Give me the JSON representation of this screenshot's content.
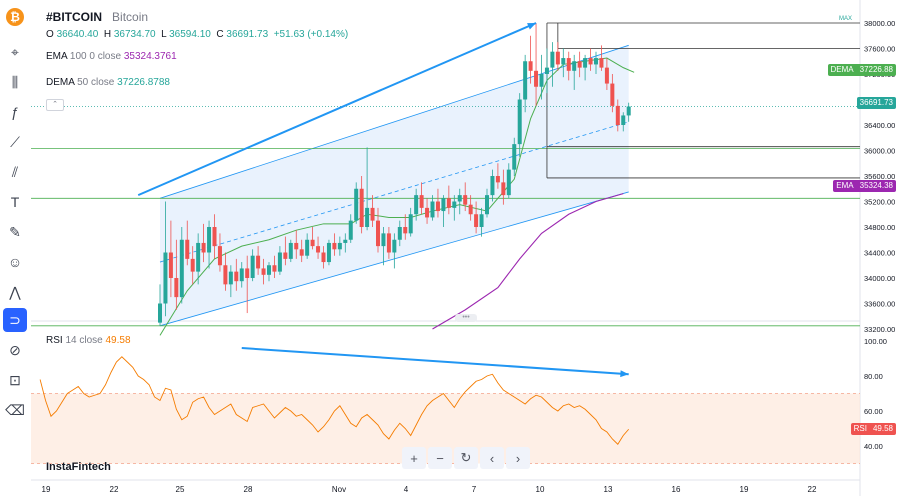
{
  "symbol": "#BITCOIN",
  "symbol_name": "Bitcoin",
  "ohlc": {
    "o_label": "O",
    "o": "36640.40",
    "h_label": "H",
    "h": "36734.70",
    "l_label": "L",
    "l": "36594.10",
    "c_label": "C",
    "c": "36691.73",
    "change": "+51.63 (+0.14%)"
  },
  "ema_legend": {
    "name": "EMA",
    "params": "100 0 close",
    "value": "35324.3761"
  },
  "dema_legend": {
    "name": "DEMA",
    "params": "50 close",
    "value": "37226.8788"
  },
  "rsi_legend": {
    "name": "RSI",
    "params": "14 close",
    "value": "49.58"
  },
  "max_label": "MAX",
  "price_labels": {
    "dema": {
      "name": "DEMA",
      "value": "37226.88"
    },
    "last": {
      "value": "36691.73"
    },
    "ema": {
      "name": "EMA",
      "value": "35324.38"
    },
    "rsi": {
      "name": "RSI",
      "value": "49.58"
    }
  },
  "brand": "InstaFintech",
  "toolbar": {
    "items": [
      "logo",
      "crosshair",
      "candles",
      "fx",
      "line",
      "channel",
      "text",
      "brush",
      "emoji",
      "waves",
      "magnet",
      "eye",
      "lock",
      "trash"
    ]
  },
  "zoom": {
    "plus": "+",
    "minus": "−",
    "reset": "↻",
    "left": "‹",
    "right": "›"
  },
  "colors": {
    "up": "#26a69a",
    "down": "#ef5350",
    "dema": "#4caf50",
    "ema": "#9c27b0",
    "rsi": "#f57c00",
    "trend": "#2196f3",
    "channel": "#2196f3",
    "level": "#4caf50"
  },
  "chart_data": {
    "type": "candlestick",
    "price_axis": {
      "ylim": [
        33150,
        38100
      ],
      "ticks": [
        "38000.00",
        "37600.00",
        "37200.00",
        "36800.00",
        "36400.00",
        "36000.00",
        "35600.00",
        "35200.00",
        "34800.00",
        "34400.00",
        "34000.00",
        "33600.00",
        "33200.00"
      ]
    },
    "x_axis": {
      "ticks": [
        "19",
        "22",
        "25",
        "28",
        "Nov",
        "4",
        "7",
        "10",
        "13",
        "16",
        "19",
        "22"
      ]
    },
    "candles": [
      [
        33300,
        33900,
        33250,
        33600
      ],
      [
        33600,
        35200,
        33400,
        34400
      ],
      [
        34400,
        34900,
        33700,
        34000
      ],
      [
        34000,
        34600,
        33500,
        33700
      ],
      [
        33700,
        34800,
        33600,
        34600
      ],
      [
        34600,
        34900,
        34200,
        34300
      ],
      [
        34300,
        34500,
        33900,
        34100
      ],
      [
        34100,
        34700,
        33900,
        34550
      ],
      [
        34550,
        34850,
        34250,
        34400
      ],
      [
        34400,
        34900,
        34150,
        34800
      ],
      [
        34800,
        35000,
        34300,
        34500
      ],
      [
        34500,
        34700,
        34100,
        34200
      ],
      [
        34200,
        34400,
        33800,
        33900
      ],
      [
        33900,
        34200,
        33700,
        34100
      ],
      [
        34100,
        34300,
        33800,
        33950
      ],
      [
        33950,
        34250,
        33850,
        34150
      ],
      [
        34150,
        34350,
        33450,
        34000
      ],
      [
        34000,
        34450,
        33950,
        34350
      ],
      [
        34350,
        34500,
        34050,
        34150
      ],
      [
        34150,
        34300,
        33900,
        34050
      ],
      [
        34050,
        34250,
        33950,
        34200
      ],
      [
        34200,
        34350,
        34000,
        34100
      ],
      [
        34100,
        34500,
        34050,
        34400
      ],
      [
        34400,
        34650,
        34200,
        34300
      ],
      [
        34300,
        34600,
        34250,
        34550
      ],
      [
        34550,
        34750,
        34300,
        34450
      ],
      [
        34450,
        34600,
        34250,
        34350
      ],
      [
        34350,
        34700,
        34300,
        34600
      ],
      [
        34600,
        34800,
        34450,
        34500
      ],
      [
        34500,
        34650,
        34300,
        34400
      ],
      [
        34400,
        34500,
        34150,
        34250
      ],
      [
        34250,
        34600,
        34200,
        34550
      ],
      [
        34550,
        34700,
        34350,
        34450
      ],
      [
        34450,
        34650,
        34350,
        34550
      ],
      [
        34550,
        34700,
        34400,
        34600
      ],
      [
        34600,
        35000,
        34550,
        34900
      ],
      [
        34900,
        35500,
        34850,
        35400
      ],
      [
        35400,
        35600,
        34700,
        34800
      ],
      [
        34800,
        36050,
        34750,
        35100
      ],
      [
        35100,
        35300,
        34800,
        34900
      ],
      [
        34900,
        35100,
        34400,
        34500
      ],
      [
        34500,
        34800,
        34200,
        34700
      ],
      [
        34700,
        34800,
        34300,
        34400
      ],
      [
        34400,
        34700,
        34150,
        34600
      ],
      [
        34600,
        34900,
        34500,
        34800
      ],
      [
        34800,
        35000,
        34600,
        34700
      ],
      [
        34700,
        35100,
        34650,
        35000
      ],
      [
        35000,
        35400,
        34900,
        35300
      ],
      [
        35300,
        35500,
        35000,
        35100
      ],
      [
        35100,
        35250,
        34850,
        34950
      ],
      [
        34950,
        35300,
        34900,
        35200
      ],
      [
        35200,
        35400,
        34950,
        35050
      ],
      [
        35050,
        35300,
        34800,
        35250
      ],
      [
        35250,
        35450,
        35000,
        35100
      ],
      [
        35100,
        35300,
        34900,
        35200
      ],
      [
        35200,
        35400,
        35000,
        35300
      ],
      [
        35300,
        35500,
        35050,
        35150
      ],
      [
        35150,
        35300,
        34900,
        35000
      ],
      [
        35000,
        35200,
        34700,
        34800
      ],
      [
        34800,
        35100,
        34650,
        35000
      ],
      [
        35000,
        35400,
        34950,
        35300
      ],
      [
        35300,
        35700,
        35200,
        35600
      ],
      [
        35600,
        35800,
        35400,
        35500
      ],
      [
        35500,
        35700,
        35150,
        35300
      ],
      [
        35300,
        35800,
        35250,
        35700
      ],
      [
        35700,
        36200,
        35600,
        36100
      ],
      [
        36100,
        36900,
        35900,
        36800
      ],
      [
        36800,
        37500,
        36600,
        37400
      ],
      [
        37400,
        37800,
        37050,
        37250
      ],
      [
        37250,
        38000,
        36700,
        37000
      ],
      [
        37000,
        37500,
        36800,
        37200
      ],
      [
        37200,
        37600,
        36900,
        37300
      ],
      [
        37300,
        37700,
        37000,
        37550
      ],
      [
        37550,
        37700,
        37250,
        37350
      ],
      [
        37350,
        37600,
        37150,
        37450
      ],
      [
        37450,
        37550,
        37100,
        37250
      ],
      [
        37250,
        37500,
        36950,
        37400
      ],
      [
        37400,
        37550,
        37150,
        37300
      ],
      [
        37300,
        37500,
        37100,
        37450
      ],
      [
        37450,
        37600,
        37250,
        37350
      ],
      [
        37350,
        37550,
        37200,
        37450
      ],
      [
        37450,
        37650,
        37250,
        37300
      ],
      [
        37300,
        37450,
        36950,
        37050
      ],
      [
        37050,
        37200,
        36600,
        36700
      ],
      [
        36700,
        36800,
        36300,
        36400
      ],
      [
        36400,
        36600,
        36300,
        36550
      ],
      [
        36550,
        36750,
        36450,
        36690
      ]
    ],
    "dema_series": [
      [
        0,
        33100
      ],
      [
        5,
        33800
      ],
      [
        10,
        34300
      ],
      [
        15,
        34500
      ],
      [
        20,
        34600
      ],
      [
        25,
        34750
      ],
      [
        30,
        34850
      ],
      [
        35,
        34850
      ],
      [
        38,
        35000
      ],
      [
        42,
        34950
      ],
      [
        46,
        34950
      ],
      [
        50,
        35050
      ],
      [
        55,
        35150
      ],
      [
        60,
        35050
      ],
      [
        65,
        35550
      ],
      [
        68,
        36500
      ],
      [
        71,
        37100
      ],
      [
        74,
        37350
      ],
      [
        78,
        37400
      ],
      [
        82,
        37450
      ],
      [
        85,
        37300
      ],
      [
        87,
        37227
      ]
    ],
    "ema_series": [
      [
        50,
        33200
      ],
      [
        56,
        33500
      ],
      [
        62,
        33850
      ],
      [
        66,
        34300
      ],
      [
        70,
        34700
      ],
      [
        75,
        35000
      ],
      [
        80,
        35200
      ],
      [
        85,
        35324
      ]
    ],
    "channel": {
      "upper": [
        [
          0,
          35250
        ],
        [
          86,
          37650
        ]
      ],
      "mid": [
        [
          0,
          34250
        ],
        [
          86,
          36450
        ]
      ],
      "lower": [
        [
          0,
          33250
        ],
        [
          86,
          35350
        ]
      ]
    },
    "levels": [
      36030,
      35250,
      33250
    ],
    "upper_levels": {
      "max": 38000,
      "level2": 37600,
      "level3": 36060,
      "level4": 35570
    },
    "trend_arrows": [
      {
        "from": [
          -4,
          35300
        ],
        "to": [
          69,
          38000
        ]
      }
    ],
    "rsi": {
      "ylim": [
        20,
        110
      ],
      "ticks": [
        "100.00",
        "80.00",
        "60.00",
        "40.00"
      ],
      "bands": [
        70,
        30
      ],
      "values": [
        78,
        66,
        57,
        60,
        65,
        70,
        72,
        74,
        70,
        68,
        69,
        70,
        75,
        82,
        88,
        91,
        88,
        85,
        80,
        78,
        75,
        68,
        66,
        73,
        72,
        61,
        55,
        57,
        65,
        67,
        68,
        62,
        58,
        60,
        62,
        64,
        58,
        56,
        54,
        62,
        63,
        64,
        60,
        56,
        59,
        62,
        60,
        57,
        58,
        55,
        52,
        48,
        51,
        55,
        60,
        63,
        58,
        53,
        51,
        56,
        58,
        55,
        52,
        47,
        44,
        49,
        53,
        50,
        46,
        52,
        58,
        63,
        66,
        68,
        70,
        66,
        62,
        67,
        71,
        74,
        77,
        78,
        80,
        81,
        76,
        72,
        70,
        68,
        66,
        64,
        67,
        69,
        68,
        65,
        62,
        60,
        63,
        64,
        62,
        63,
        61,
        58,
        55,
        50,
        48,
        44,
        41,
        46,
        49.58
      ],
      "arrow": {
        "from": [
          15,
          96
        ],
        "to": [
          86,
          81
        ]
      }
    }
  }
}
